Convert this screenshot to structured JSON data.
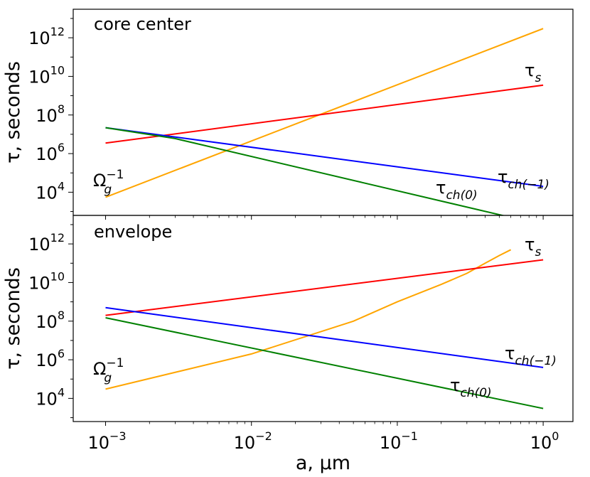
{
  "chart_data": [
    {
      "type": "line",
      "title": "core center",
      "xlabel": "a, μm",
      "ylabel": "τ, seconds",
      "x_scale": "log",
      "y_scale": "log",
      "xlim": [
        0.0006,
        1.6
      ],
      "ylim": [
        630,
        30000000000000
      ],
      "x_tick_labels": [
        {
          "value": 0.001,
          "base": "10",
          "exp": "−3"
        },
        {
          "value": 0.01,
          "base": "10",
          "exp": "−2"
        },
        {
          "value": 0.1,
          "base": "10",
          "exp": "−1"
        },
        {
          "value": 1,
          "base": "10",
          "exp": "0"
        }
      ],
      "y_tick_labels": [
        {
          "value": 10000,
          "base": "10",
          "exp": "4"
        },
        {
          "value": 1000000,
          "base": "10",
          "exp": "6"
        },
        {
          "value": 100000000,
          "base": "10",
          "exp": "8"
        },
        {
          "value": 10000000000,
          "base": "10",
          "exp": "10"
        },
        {
          "value": 1000000000000,
          "base": "10",
          "exp": "12"
        }
      ],
      "grid": false,
      "legend": "none",
      "series": [
        {
          "name": "Ω_g^{-1}",
          "label": {
            "main": "Ω",
            "sub": "g",
            "sup": "−1"
          },
          "color": "#ffa500",
          "x": [
            0.001,
            1
          ],
          "y": [
            5500,
            3000000000000
          ]
        },
        {
          "name": "τ_s",
          "label": {
            "main": "τ",
            "sub": "s",
            "sup": ""
          },
          "color": "#ff0000",
          "x": [
            0.001,
            1
          ],
          "y": [
            3500000,
            3500000000
          ]
        },
        {
          "name": "τ_ch(−1)",
          "label": {
            "main": "τ",
            "sub": "ch(−1)",
            "sup": ""
          },
          "color": "#0000ff",
          "x": [
            0.001,
            1
          ],
          "y": [
            22000000,
            20000
          ]
        },
        {
          "name": "τ_ch(0)",
          "label": {
            "main": "τ",
            "sub": "ch(0)",
            "sup": ""
          },
          "color": "#008000",
          "x": [
            0.001,
            0.003,
            1.0
          ],
          "y": [
            22000000,
            6000000,
            200
          ]
        }
      ]
    },
    {
      "type": "line",
      "title": "envelope",
      "xlabel": "a, μm",
      "ylabel": "τ, seconds",
      "x_scale": "log",
      "y_scale": "log",
      "xlim": [
        0.0006,
        1.6
      ],
      "ylim": [
        630,
        30000000000000
      ],
      "x_tick_labels": [
        {
          "value": 0.001,
          "base": "10",
          "exp": "−3"
        },
        {
          "value": 0.01,
          "base": "10",
          "exp": "−2"
        },
        {
          "value": 0.1,
          "base": "10",
          "exp": "−1"
        },
        {
          "value": 1,
          "base": "10",
          "exp": "0"
        }
      ],
      "y_tick_labels": [
        {
          "value": 10000,
          "base": "10",
          "exp": "4"
        },
        {
          "value": 1000000,
          "base": "10",
          "exp": "6"
        },
        {
          "value": 100000000,
          "base": "10",
          "exp": "8"
        },
        {
          "value": 10000000000,
          "base": "10",
          "exp": "10"
        },
        {
          "value": 1000000000000,
          "base": "10",
          "exp": "12"
        }
      ],
      "grid": false,
      "legend": "none",
      "series": [
        {
          "name": "Ω_g^{-1}",
          "label": {
            "main": "Ω",
            "sub": "g",
            "sup": "−1"
          },
          "color": "#ffa500",
          "x": [
            0.001,
            0.01,
            0.05,
            0.1,
            0.2,
            0.3,
            0.4,
            0.5,
            0.6
          ],
          "y": [
            30000,
            2000000,
            100000000,
            1000000000,
            8000000000,
            30000000000,
            100000000000,
            250000000000,
            500000000000
          ]
        },
        {
          "name": "τ_s",
          "label": {
            "main": "τ",
            "sub": "s",
            "sup": ""
          },
          "color": "#ff0000",
          "x": [
            0.001,
            1
          ],
          "y": [
            200000000,
            150000000000
          ]
        },
        {
          "name": "τ_ch(−1)",
          "label": {
            "main": "τ",
            "sub": "ch(−1)",
            "sup": ""
          },
          "color": "#0000ff",
          "x": [
            0.001,
            1
          ],
          "y": [
            500000000,
            400000
          ]
        },
        {
          "name": "τ_ch(0)",
          "label": {
            "main": "τ",
            "sub": "ch(0)",
            "sup": ""
          },
          "color": "#008000",
          "x": [
            0.001,
            1
          ],
          "y": [
            150000000,
            3000
          ]
        }
      ]
    }
  ]
}
